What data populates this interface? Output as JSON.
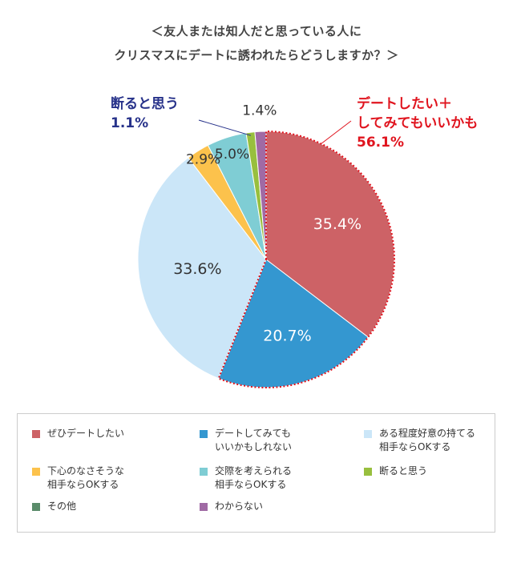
{
  "title": {
    "line1": "＜友人または知人だと思っている人に",
    "line2": "クリスマスにデートに誘われたらどうしますか？＞"
  },
  "callouts": {
    "decline_label": "断ると思う",
    "decline_value": "1.1%",
    "date_label_1": "デートしたい＋",
    "date_label_2": "してみてもいいかも",
    "date_value": "56.1%"
  },
  "colors": {
    "decline_callout": "#27328a",
    "date_callout": "#e0141e"
  },
  "chart_data": {
    "type": "pie",
    "start": "12 o'clock",
    "direction": "clockwise",
    "slices": [
      {
        "label": "ぜひデートしたい",
        "value": 35.4,
        "value_label": "35.4%",
        "color": "#cd6266",
        "label_color": "#ffffff"
      },
      {
        "label": "デートしてみても\nいいかもしれない",
        "value": 20.7,
        "value_label": "20.7%",
        "color": "#3497d0",
        "label_color": "#ffffff"
      },
      {
        "label": "ある程度好意の持てる\n相手ならOKする",
        "value": 33.6,
        "value_label": "33.6%",
        "color": "#cbe6f8",
        "label_color": "#333333"
      },
      {
        "label": "下心のなさそうな\n相手ならOKする",
        "value": 2.9,
        "value_label": "2.9%",
        "color": "#fcc24c",
        "label_color": "#333333"
      },
      {
        "label": "交際を考えられる\n相手ならOKする",
        "value": 5.0,
        "value_label": "5.0%",
        "color": "#7fcdd4",
        "label_color": "#333333"
      },
      {
        "label": "断ると思う",
        "value": 1.1,
        "value_label": "",
        "color": "#98bf3e",
        "label_color": "#333333"
      },
      {
        "label": "その他",
        "value": 0.0,
        "value_label": "",
        "color": "#5a8c6a",
        "label_color": "#333333"
      },
      {
        "label": "わからない",
        "value": 1.4,
        "value_label": "1.4%",
        "color": "#a06aa4",
        "label_color": "#333333"
      }
    ],
    "highlight": {
      "slices": [
        0,
        1
      ],
      "outline": "dotted",
      "color": "#e0141e"
    },
    "legend": {
      "position": "bottom",
      "columns": 3
    }
  }
}
